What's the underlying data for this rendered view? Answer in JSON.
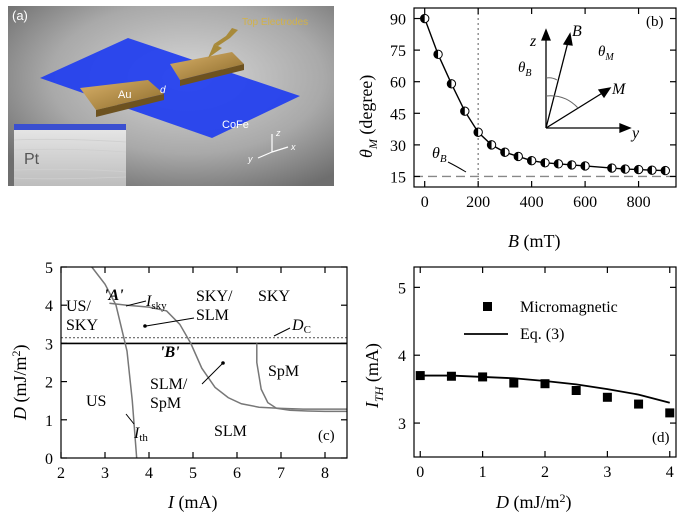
{
  "panel_a": {
    "label": "(a)",
    "top_electrodes_label": "Top Electrodes",
    "au_label": "Au",
    "gap_label": "d",
    "cofe_label": "CoFe",
    "pt_label": "Pt",
    "axis_z": "z",
    "axis_y": "y",
    "axis_x": "x"
  },
  "panel_b": {
    "inset": {
      "z": "z",
      "B": "B",
      "M": "M",
      "y": "y",
      "thetaB": "θ",
      "thetaB_sub": "B",
      "thetaM": "θ",
      "thetaM_sub": "M"
    },
    "thetaB_label": "θ",
    "thetaB_label_sub": "B"
  },
  "panel_c": {
    "labels": {
      "US_SKY_1": "US/",
      "US_SKY_2": "SKY",
      "A": "'A'",
      "Isky": "I",
      "Isky_sub": "sky",
      "SKY_SLM_1": "SKY/",
      "SKY_SLM_2": "SLM",
      "SKY": "SKY",
      "Dc": "D",
      "Dc_sub": "C",
      "B": "'B'",
      "SLM_SpM_1": "SLM/",
      "SLM_SpM_2": "SpM",
      "SpM": "SpM",
      "US": "US",
      "Ith": "I",
      "Ith_sub": "th",
      "SLM": "SLM"
    }
  },
  "panel_d": {
    "legend_markers": "Micromagnetic",
    "legend_line": "Eq. (3)"
  },
  "chart_data": [
    {
      "panel": "(b)",
      "type": "scatter",
      "xlabel": "B (mT)",
      "ylabel": "θM (degree)",
      "xlim": [
        -40,
        940
      ],
      "ylim": [
        10,
        95
      ],
      "xticks": [
        0,
        200,
        400,
        600,
        800
      ],
      "yticks": [
        15,
        30,
        45,
        60,
        75,
        90
      ],
      "vline_x": 200,
      "hline_y": 15,
      "series": [
        {
          "x": [
            0,
            50,
            100,
            150,
            200,
            250,
            300,
            350,
            400,
            450,
            500,
            550,
            600,
            700,
            750,
            800,
            850,
            900
          ],
          "y": [
            90,
            73,
            59,
            46,
            36,
            30,
            26.5,
            24.5,
            22.5,
            21.5,
            21,
            20.5,
            20,
            19,
            18.5,
            18.3,
            18,
            17.8
          ]
        }
      ]
    },
    {
      "panel": "(c)",
      "type": "line",
      "xlabel": "I (mA)",
      "ylabel": "D (mJ/m²)",
      "xlim": [
        2,
        8.5
      ],
      "ylim": [
        0,
        5
      ],
      "xticks": [
        2,
        3,
        4,
        5,
        6,
        7,
        8
      ],
      "yticks": [
        0,
        1,
        2,
        3,
        4,
        5
      ],
      "Dc": 3.15,
      "hline_y": 3.0,
      "series": [
        {
          "x": [
            2.7,
            3.0,
            3.25,
            3.5,
            3.62,
            3.7,
            3.72
          ],
          "y": [
            5.0,
            4.55,
            4.0,
            2.8,
            1.5,
            0.3,
            0.0
          ]
        },
        {
          "x": [
            3.1,
            3.5,
            4.0,
            4.4,
            4.7,
            4.95,
            5.2,
            5.5,
            5.8,
            6.1,
            6.5,
            7.0,
            7.5,
            8.5
          ],
          "y": [
            4.05,
            4.0,
            3.95,
            3.85,
            3.5,
            3.0,
            2.35,
            1.85,
            1.58,
            1.42,
            1.33,
            1.3,
            1.28,
            1.28
          ]
        },
        {
          "x": [
            6.45,
            6.45,
            6.55,
            6.7,
            6.9,
            7.2,
            7.6,
            8.0,
            8.5
          ],
          "y": [
            3.0,
            2.5,
            1.8,
            1.45,
            1.3,
            1.25,
            1.23,
            1.22,
            1.22
          ]
        }
      ]
    },
    {
      "panel": "(d)",
      "type": "scatter",
      "xlabel": "D (mJ/m²)",
      "ylabel": "ITH (mA)",
      "xlim": [
        -0.1,
        4.1
      ],
      "ylim": [
        2.5,
        5.3
      ],
      "xticks": [
        0,
        1,
        2,
        3,
        4
      ],
      "yticks": [
        3,
        4,
        5
      ],
      "series": [
        {
          "name": "Micromagnetic",
          "x": [
            0,
            0.5,
            1,
            1.5,
            2,
            2.5,
            3,
            3.5,
            4
          ],
          "y": [
            3.7,
            3.69,
            3.68,
            3.59,
            3.58,
            3.48,
            3.38,
            3.28,
            3.15
          ]
        },
        {
          "name": "Eq. (3)",
          "x": [
            0,
            0.5,
            1,
            1.5,
            2,
            2.5,
            3,
            3.5,
            4
          ],
          "y": [
            3.7,
            3.7,
            3.68,
            3.66,
            3.62,
            3.57,
            3.5,
            3.42,
            3.3
          ]
        }
      ]
    }
  ]
}
